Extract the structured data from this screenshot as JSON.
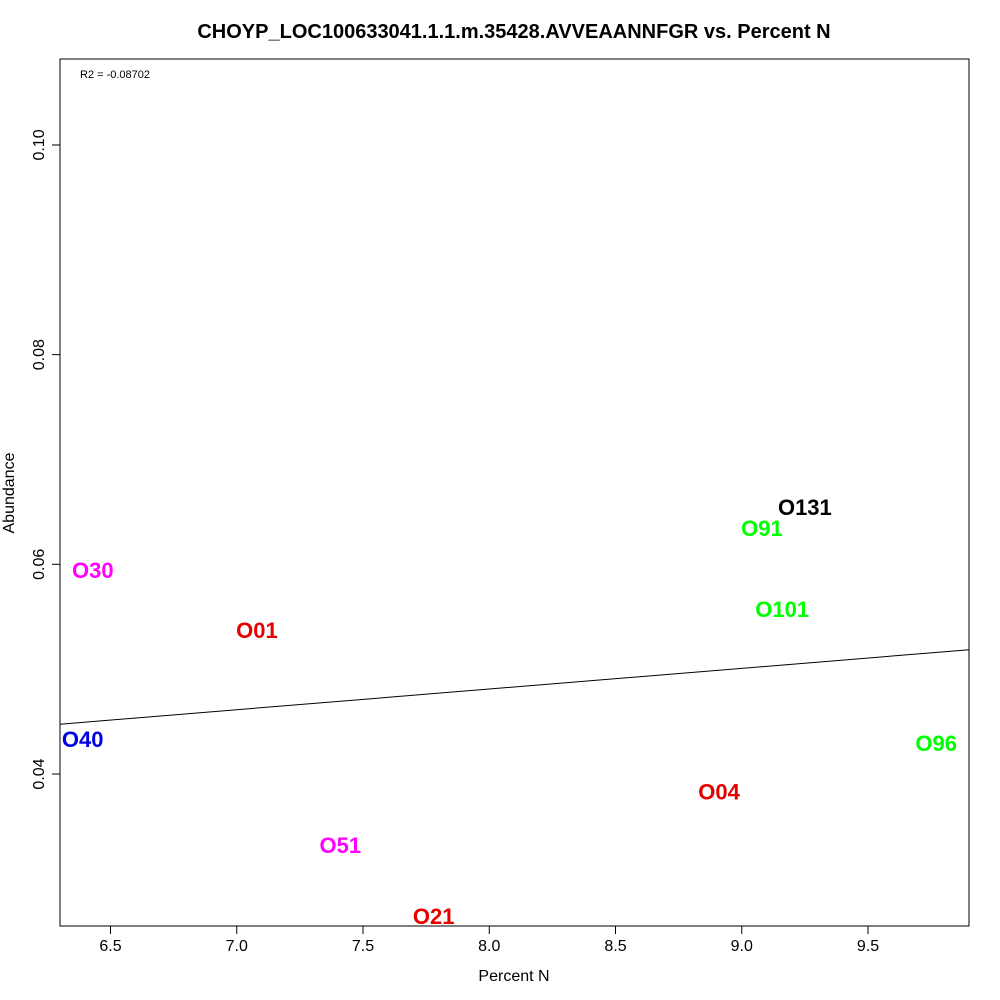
{
  "chart_data": {
    "type": "scatter",
    "title": "CHOYP_LOC100633041.1.1.m.35428.AVVEAANNFGR vs. Percent N",
    "xlabel": "Percent N",
    "ylabel": "Abundance",
    "annotation": "R2 = -0.08702",
    "xlim": [
      6.3,
      9.9
    ],
    "ylim": [
      0.0255,
      0.1082
    ],
    "xticks": [
      6.5,
      7.0,
      7.5,
      8.0,
      8.5,
      9.0,
      9.5
    ],
    "xtick_labels": [
      "6.5",
      "7.0",
      "7.5",
      "8.0",
      "8.5",
      "9.0",
      "9.5"
    ],
    "yticks": [
      0.04,
      0.06,
      0.08,
      0.1
    ],
    "ytick_labels": [
      "0.04",
      "0.06",
      "0.08",
      "0.10"
    ],
    "grid": false,
    "points": [
      {
        "label": "O131",
        "x": 9.25,
        "y": 0.0654,
        "color": "#000000"
      },
      {
        "label": "O91",
        "x": 9.08,
        "y": 0.0634,
        "color": "#00ff00"
      },
      {
        "label": "O30",
        "x": 6.43,
        "y": 0.0594,
        "color": "#ff00ff"
      },
      {
        "label": "O101",
        "x": 9.16,
        "y": 0.0557,
        "color": "#00ff00"
      },
      {
        "label": "O01",
        "x": 7.08,
        "y": 0.0537,
        "color": "#e60000"
      },
      {
        "label": "O40",
        "x": 6.39,
        "y": 0.0433,
        "color": "#0000e6"
      },
      {
        "label": "O96",
        "x": 9.77,
        "y": 0.0429,
        "color": "#00ff00"
      },
      {
        "label": "O04",
        "x": 8.91,
        "y": 0.0383,
        "color": "#e60000"
      },
      {
        "label": "O51",
        "x": 7.41,
        "y": 0.0332,
        "color": "#ff00ff"
      },
      {
        "label": "O21",
        "x": 7.78,
        "y": 0.0264,
        "color": "#e60000"
      }
    ],
    "fit_line": {
      "x": [
        6.3,
        9.9
      ],
      "y": [
        0.04475,
        0.05185
      ],
      "color": "#000000"
    }
  }
}
